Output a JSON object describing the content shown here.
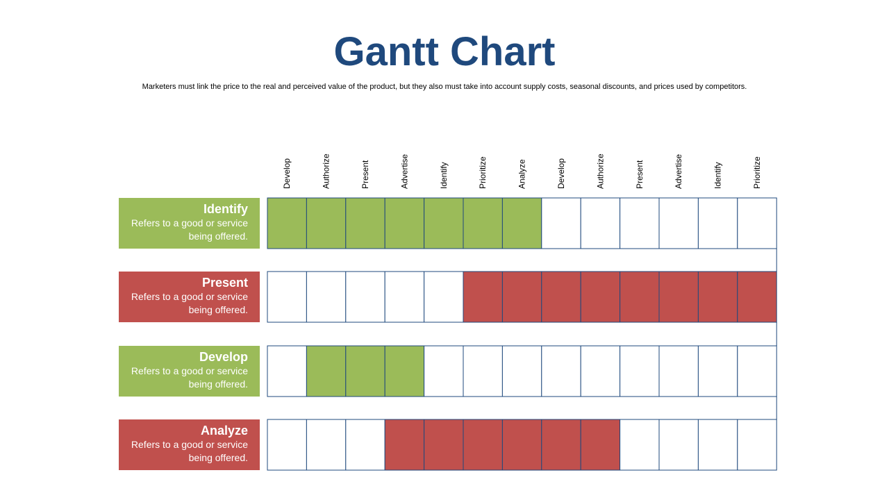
{
  "title": "Gantt Chart",
  "subtitle": "Marketers must link the price to the real and perceived value of the product, but they also must take into account supply costs, seasonal discounts, and prices used by competitors.",
  "colors": {
    "title": "#1F497D",
    "green": "#9BBB59",
    "red": "#C0504D",
    "grid": "#1F497D",
    "empty": "#FFFFFF"
  },
  "chart_data": {
    "type": "gantt",
    "columns": [
      "Develop",
      "Authorize",
      "Present",
      "Advertise",
      "Identify",
      "Prioritize",
      "Analyze",
      "Develop",
      "Authorize",
      "Present",
      "Advertise",
      "Identify",
      "Prioritize"
    ],
    "tasks": [
      {
        "name": "Identify",
        "description": "Refers to a good or service being offered.",
        "color": "green",
        "start": 0,
        "end": 6
      },
      {
        "name": "Present",
        "description": "Refers to a good or service being offered.",
        "color": "red",
        "start": 5,
        "end": 12
      },
      {
        "name": "Develop",
        "description": "Refers to a good or service being offered.",
        "color": "green",
        "start": 1,
        "end": 3
      },
      {
        "name": "Analyze",
        "description": "Refers to a good or service being offered.",
        "color": "red",
        "start": 3,
        "end": 8
      }
    ]
  }
}
